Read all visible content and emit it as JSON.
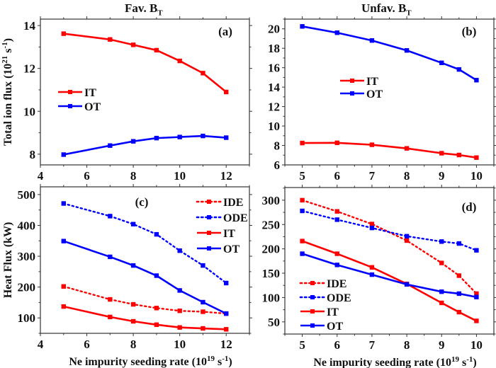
{
  "titles": {
    "left": "Fav. B",
    "left_sub": "T",
    "right": "Unfav. B",
    "right_sub": "T"
  },
  "xlabel": "Ne impurity seeding rate",
  "xlabel_unit_prefix": "(10",
  "xlabel_unit_exp": "19",
  "xlabel_unit_mid": " s",
  "xlabel_unit_exp2": "-1",
  "xlabel_unit_suffix": ")",
  "colors": {
    "red": "#ff0000",
    "blue": "#0000ff",
    "axis": "#333333"
  },
  "chart_data": [
    {
      "id": "a",
      "type": "line",
      "panel_label": "(a)",
      "title": "Fav. BT",
      "ylabel": "Total ion flux (10^21 s^-1)",
      "xlabel": "",
      "x": [
        5,
        7,
        8,
        9,
        10,
        11,
        12
      ],
      "xlim": [
        4,
        13
      ],
      "ylim": [
        7.5,
        14.3
      ],
      "xticks": [
        4,
        6,
        8,
        10,
        12
      ],
      "yticks": [
        8,
        10,
        12,
        14
      ],
      "legend": "center-left",
      "series": [
        {
          "name": "IT",
          "color": "#ff0000",
          "style": "solid",
          "values": [
            13.62,
            13.35,
            13.1,
            12.85,
            12.35,
            11.78,
            10.9
          ]
        },
        {
          "name": "OT",
          "color": "#0000ff",
          "style": "solid",
          "values": [
            7.98,
            8.4,
            8.6,
            8.75,
            8.8,
            8.85,
            8.77
          ]
        }
      ]
    },
    {
      "id": "b",
      "type": "line",
      "panel_label": "(b)",
      "title": "Unfav. BT",
      "ylabel": "",
      "xlabel": "",
      "x": [
        5,
        6,
        7,
        8,
        9,
        9.5,
        10
      ],
      "xlim": [
        4.5,
        10.5
      ],
      "ylim": [
        6,
        21
      ],
      "xticks": [
        5,
        6,
        7,
        8,
        9,
        10
      ],
      "yticks": [
        6,
        8,
        10,
        12,
        14,
        16,
        18,
        20
      ],
      "legend": "center-left",
      "series": [
        {
          "name": "IT",
          "color": "#ff0000",
          "style": "solid",
          "values": [
            8.25,
            8.27,
            8.07,
            7.7,
            7.2,
            7.02,
            6.75
          ]
        },
        {
          "name": "OT",
          "color": "#0000ff",
          "style": "solid",
          "values": [
            20.25,
            19.6,
            18.8,
            17.78,
            16.5,
            15.82,
            14.72
          ]
        }
      ]
    },
    {
      "id": "c",
      "type": "line",
      "panel_label": "(c)",
      "title": "",
      "ylabel": "Heat Flux (kW)",
      "xlabel": "Ne impurity seeding rate (10^19 s^-1)",
      "x": [
        5,
        7,
        8,
        9,
        10,
        11,
        12
      ],
      "xlim": [
        4,
        13
      ],
      "ylim": [
        50,
        525
      ],
      "xticks": [
        4,
        6,
        8,
        10,
        12
      ],
      "yticks": [
        100,
        200,
        300,
        400,
        500
      ],
      "legend": "top-right",
      "series": [
        {
          "name": "IDE",
          "color": "#ff0000",
          "style": "dotted",
          "values": [
            202,
            160,
            144,
            132,
            123,
            120,
            114
          ]
        },
        {
          "name": "ODE",
          "color": "#0000ff",
          "style": "dotted",
          "values": [
            471,
            430,
            404,
            371,
            318,
            270,
            213
          ]
        },
        {
          "name": "IT",
          "color": "#ff0000",
          "style": "solid",
          "values": [
            137,
            103,
            89,
            78,
            69,
            66,
            63
          ]
        },
        {
          "name": "OT",
          "color": "#0000ff",
          "style": "solid",
          "values": [
            349,
            298,
            270,
            237,
            189,
            151,
            114
          ]
        }
      ]
    },
    {
      "id": "d",
      "type": "line",
      "panel_label": "(d)",
      "title": "",
      "ylabel": "",
      "xlabel": "Ne impurity seeding rate (10^19 s^-1)",
      "x": [
        5,
        6,
        7,
        8,
        9,
        9.5,
        10
      ],
      "xlim": [
        4.5,
        10.5
      ],
      "ylim": [
        25,
        326
      ],
      "xticks": [
        5,
        6,
        7,
        8,
        9,
        10
      ],
      "yticks": [
        50,
        100,
        150,
        200,
        250,
        300
      ],
      "legend": "bottom-left",
      "series": [
        {
          "name": "IDE",
          "color": "#ff0000",
          "style": "dotted",
          "values": [
            300,
            277,
            251,
            217,
            171,
            145,
            108
          ]
        },
        {
          "name": "ODE",
          "color": "#0000ff",
          "style": "dotted",
          "values": [
            278,
            260,
            243,
            226,
            215,
            211,
            197
          ]
        },
        {
          "name": "IT",
          "color": "#ff0000",
          "style": "solid",
          "values": [
            216,
            190,
            162,
            128,
            89,
            70,
            52
          ]
        },
        {
          "name": "OT",
          "color": "#0000ff",
          "style": "solid",
          "values": [
            190,
            167,
            147,
            127,
            112,
            108,
            101
          ]
        }
      ]
    }
  ]
}
